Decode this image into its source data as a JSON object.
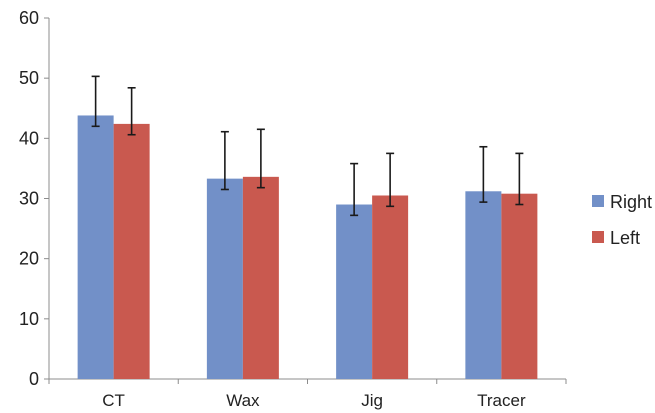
{
  "chart_data": {
    "type": "bar",
    "categories": [
      "CT",
      "Wax",
      "Jig",
      "Tracer"
    ],
    "series": [
      {
        "name": "Right",
        "color": "#7290C8",
        "values": [
          43.8,
          33.3,
          29.0,
          31.2
        ],
        "errors": [
          6.5,
          7.8,
          6.8,
          7.4
        ]
      },
      {
        "name": "Left",
        "color": "#C9594F",
        "values": [
          42.4,
          33.6,
          30.5,
          30.8
        ],
        "errors": [
          6.0,
          7.9,
          7.0,
          6.7
        ]
      }
    ],
    "ylim": [
      0,
      60
    ],
    "yticks": [
      0,
      10,
      20,
      30,
      40,
      50,
      60
    ],
    "yticks_text": [
      "0",
      "10",
      "20",
      "30",
      "40",
      "50",
      "60"
    ],
    "grid": false,
    "legend_position": "right",
    "error_bars": true
  }
}
